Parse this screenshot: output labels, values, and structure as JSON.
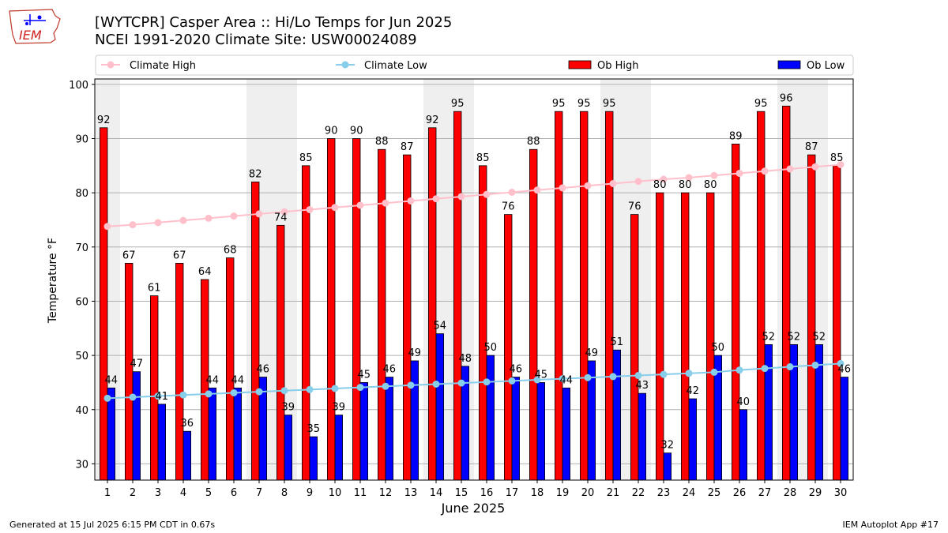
{
  "logo": {
    "text": "IEM",
    "icon": "iowa-state-outline-icon"
  },
  "title": {
    "line1": "[WYTCPR] Casper Area :: Hi/Lo Temps for Jun 2025",
    "line2": "NCEI 1991-2020 Climate Site: USW00024089"
  },
  "footer": {
    "left": "Generated at 15 Jul 2025 6:15 PM CDT in 0.67s",
    "right": "IEM Autoplot App #17"
  },
  "colors": {
    "ob_high": "#ff0000",
    "ob_low": "#0000ff",
    "climate_high": "#ffc0cb",
    "climate_low": "#87ceeb",
    "weekend_band": "#efefef"
  },
  "chart_data": {
    "type": "bar",
    "xlabel": "June 2025",
    "ylabel": "Temperature °F",
    "ylim": [
      27,
      101
    ],
    "yticks": [
      30,
      40,
      50,
      60,
      70,
      80,
      90,
      100
    ],
    "grid": "horizontal",
    "legend_position": "top",
    "categories": [
      "1",
      "2",
      "3",
      "4",
      "5",
      "6",
      "7",
      "8",
      "9",
      "10",
      "11",
      "12",
      "13",
      "14",
      "15",
      "16",
      "17",
      "18",
      "19",
      "20",
      "21",
      "22",
      "23",
      "24",
      "25",
      "26",
      "27",
      "28",
      "29",
      "30"
    ],
    "shaded_days": [
      1,
      7,
      8,
      14,
      15,
      21,
      22,
      28,
      29
    ],
    "series": [
      {
        "name": "Ob High",
        "kind": "bar",
        "color": "#ff0000",
        "values": [
          92,
          67,
          61,
          67,
          64,
          68,
          82,
          74,
          85,
          90,
          90,
          88,
          87,
          92,
          95,
          85,
          76,
          88,
          95,
          95,
          95,
          76,
          80,
          80,
          80,
          89,
          95,
          96,
          87,
          85
        ]
      },
      {
        "name": "Ob Low",
        "kind": "bar",
        "color": "#0000ff",
        "values": [
          44,
          47,
          41,
          36,
          44,
          44,
          46,
          39,
          35,
          39,
          45,
          46,
          49,
          54,
          48,
          50,
          46,
          45,
          44,
          49,
          51,
          43,
          32,
          42,
          50,
          40,
          52,
          52,
          52,
          46
        ]
      },
      {
        "name": "Climate High",
        "kind": "line",
        "color": "#ffc0cb",
        "values": [
          73.8,
          74.1,
          74.5,
          74.9,
          75.3,
          75.7,
          76.1,
          76.5,
          76.9,
          77.3,
          77.7,
          78.1,
          78.5,
          78.9,
          79.3,
          79.7,
          80.1,
          80.5,
          80.9,
          81.3,
          81.7,
          82.1,
          82.5,
          82.8,
          83.2,
          83.6,
          84.0,
          84.4,
          84.8,
          85.2
        ]
      },
      {
        "name": "Climate Low",
        "kind": "line",
        "color": "#87ceeb",
        "values": [
          42.1,
          42.3,
          42.5,
          42.7,
          42.9,
          43.1,
          43.3,
          43.5,
          43.7,
          43.9,
          44.1,
          44.3,
          44.5,
          44.7,
          44.9,
          45.1,
          45.3,
          45.5,
          45.7,
          45.9,
          46.1,
          46.3,
          46.5,
          46.7,
          46.9,
          47.3,
          47.6,
          47.9,
          48.2,
          48.5
        ]
      }
    ]
  }
}
